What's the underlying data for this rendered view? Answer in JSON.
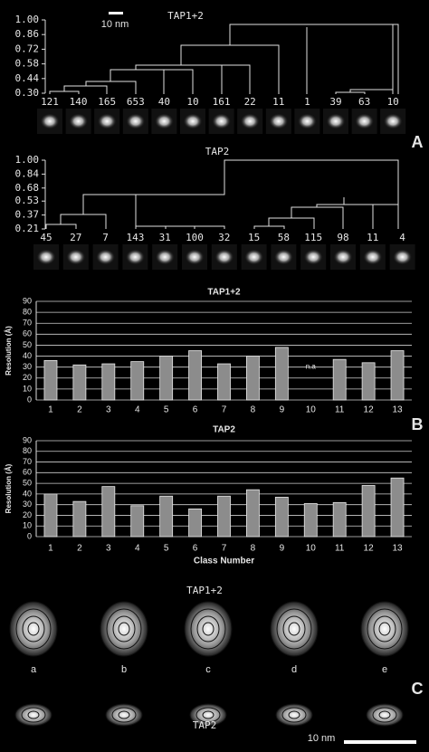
{
  "chart_data": [
    {
      "type": "dendrogram",
      "title": "TAP1+2",
      "categories": [
        "121",
        "140",
        "165",
        "653",
        "40",
        "10",
        "161",
        "22",
        "11",
        "1",
        "39",
        "63",
        "10"
      ],
      "ylim": [
        0.3,
        1.0
      ],
      "yticks": [
        {
          "value": 0.3,
          "label": "0.30"
        },
        0.44,
        0.58,
        0.72,
        0.86,
        {
          "value": 1.0,
          "label": "1.00"
        }
      ]
    },
    {
      "type": "dendrogram",
      "title": "TAP2",
      "categories": [
        "45",
        "27",
        "7",
        "143",
        "31",
        "100",
        "32",
        "15",
        "58",
        "115",
        "98",
        "11",
        "4"
      ],
      "ylim": [
        0.21,
        1.0
      ],
      "yticks": [
        0.21,
        0.37,
        0.53,
        0.68,
        0.84,
        {
          "value": 1.0,
          "label": "1.00"
        }
      ]
    },
    {
      "type": "bar",
      "title": "TAP1+2",
      "y_label": "Resolution (Å)",
      "categories": [
        "1",
        "2",
        "3",
        "4",
        "5",
        "6",
        "7",
        "8",
        "9",
        "10",
        "11",
        "12",
        "13"
      ],
      "values": [
        36,
        32,
        33,
        35,
        40,
        45,
        33,
        40,
        48,
        null,
        37,
        34,
        45
      ],
      "annotation": "n.a",
      "color": "#8c8c8c",
      "ylim": [
        0,
        90
      ],
      "yticks": [
        0,
        10,
        20,
        30,
        40,
        50,
        60,
        70,
        80,
        90
      ],
      "grid": true
    },
    {
      "type": "bar",
      "title": "TAP2",
      "y_label": "Resolution (Å)",
      "x_label": "Class Number",
      "categories": [
        "1",
        "2",
        "3",
        "4",
        "5",
        "6",
        "7",
        "8",
        "9",
        "10",
        "11",
        "12",
        "13"
      ],
      "values": [
        40,
        33,
        47,
        29,
        38,
        26,
        38,
        44,
        37,
        31,
        32,
        48,
        55
      ],
      "color": "#8c8c8c",
      "ylim": [
        0,
        90
      ],
      "yticks": [
        0,
        10,
        20,
        30,
        40,
        50,
        60,
        70,
        80,
        90
      ],
      "grid": true
    }
  ],
  "scale_bar_top": "10 nm",
  "panel_labels": [
    "A",
    "B",
    "C"
  ],
  "panel_c": {
    "title_top": "TAP1+2",
    "labels": [
      "a",
      "b",
      "c",
      "d",
      "e"
    ],
    "title_bottom": "TAP2",
    "scale_bar": "10 nm"
  }
}
